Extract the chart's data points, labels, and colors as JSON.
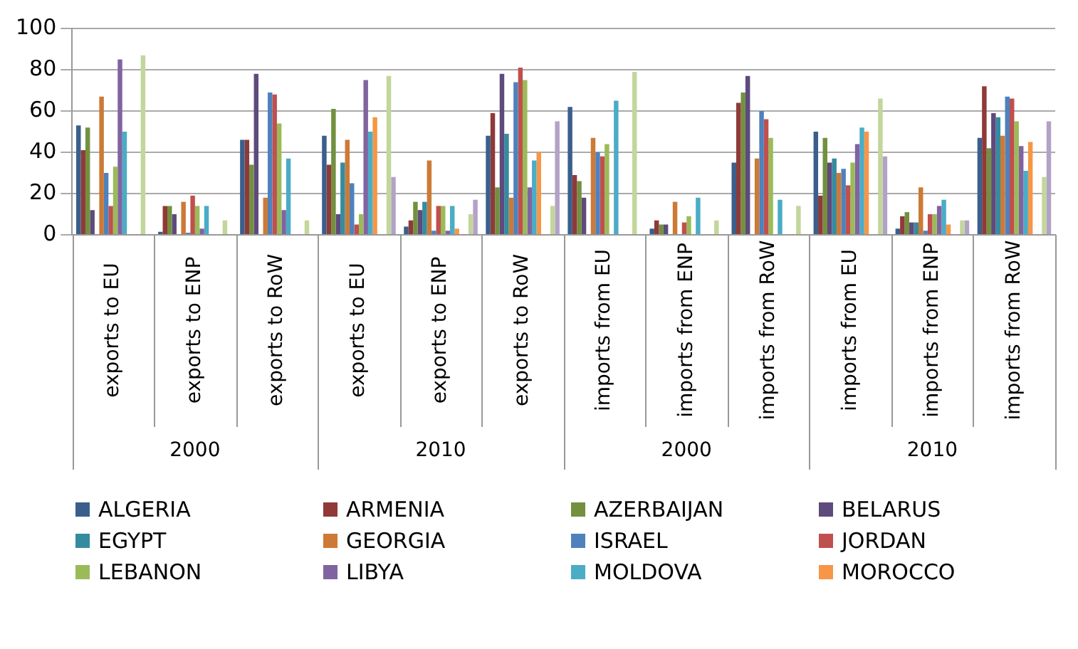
{
  "chart_data": {
    "type": "bar",
    "categories": [
      "exports to EU",
      "exports to ENP",
      "exports to RoW",
      "exports to EU",
      "exports to ENP",
      "exports to RoW",
      "imports from EU",
      "imports from ENP",
      "imports from RoW",
      "imports from EU",
      "imports from ENP",
      "imports from RoW"
    ],
    "annotations": [
      "2000",
      "2010",
      "2000",
      "2010"
    ],
    "ylim": [
      0,
      100
    ],
    "yticks": [
      0,
      20,
      40,
      60,
      80,
      100
    ],
    "grid": "y",
    "legend": "bottom",
    "series": [
      {
        "name": "ALGERIA",
        "color": "#3a5f8c",
        "values": [
          53,
          1.5,
          46,
          48,
          4,
          48,
          62,
          3,
          35,
          50,
          3,
          47
        ]
      },
      {
        "name": "ARMENIA",
        "color": "#8f3a38",
        "values": [
          41,
          14,
          46,
          34,
          7,
          59,
          29,
          7,
          64,
          19,
          9,
          72
        ]
      },
      {
        "name": "AZERBAIJAN",
        "color": "#73903f",
        "values": [
          52,
          14,
          34,
          61,
          16,
          23,
          26,
          5,
          69,
          47,
          11,
          42
        ]
      },
      {
        "name": "BELARUS",
        "color": "#5e4a7c",
        "values": [
          12,
          10,
          78,
          10,
          12,
          78,
          18,
          5,
          77,
          35,
          6,
          59
        ]
      },
      {
        "name": "EGYPT",
        "color": "#358b9f",
        "values": [
          null,
          null,
          null,
          35,
          16,
          49,
          null,
          null,
          null,
          37,
          6,
          57
        ]
      },
      {
        "name": "GEORGIA",
        "color": "#cc7a36",
        "values": [
          67,
          16,
          18,
          46,
          36,
          18,
          47,
          16,
          37,
          30,
          23,
          48
        ]
      },
      {
        "name": "ISRAEL",
        "color": "#4f81bd",
        "values": [
          30,
          1,
          69,
          25,
          2,
          74,
          40,
          null,
          60,
          32,
          2,
          67
        ]
      },
      {
        "name": "JORDAN",
        "color": "#c0504d",
        "values": [
          14,
          19,
          68,
          5,
          14,
          81,
          38,
          6,
          56,
          24,
          10,
          66
        ]
      },
      {
        "name": "LEBANON",
        "color": "#9bbb59",
        "values": [
          33,
          14,
          54,
          10,
          14,
          75,
          44,
          9,
          47,
          35,
          10,
          55
        ]
      },
      {
        "name": "LIBYA",
        "color": "#8064a2",
        "values": [
          85,
          3,
          12,
          75,
          2,
          23,
          null,
          null,
          null,
          44,
          14,
          43
        ]
      },
      {
        "name": "MOLDOVA",
        "color": "#4bacc6",
        "values": [
          50,
          14,
          37,
          50,
          14,
          36,
          65,
          18,
          17,
          52,
          17,
          31
        ]
      },
      {
        "name": "MOROCCO",
        "color": "#f79646",
        "values": [
          null,
          null,
          null,
          57,
          3,
          40,
          null,
          null,
          null,
          50,
          5,
          45
        ]
      },
      {
        "color": "#95b3d7",
        "values": [
          null,
          null,
          null,
          null,
          null,
          null,
          null,
          null,
          null,
          null,
          null,
          null
        ]
      },
      {
        "color": "#d99694",
        "values": [
          null,
          null,
          null,
          null,
          null,
          null,
          null,
          null,
          null,
          null,
          null,
          null
        ]
      },
      {
        "color": "#c3d69b",
        "values": [
          87,
          7,
          7,
          77,
          10,
          14,
          79,
          7,
          14,
          66,
          7,
          28
        ]
      },
      {
        "color": "#b3a2c7",
        "values": [
          null,
          null,
          null,
          28,
          17,
          55,
          null,
          null,
          null,
          38,
          7,
          55
        ]
      }
    ]
  }
}
